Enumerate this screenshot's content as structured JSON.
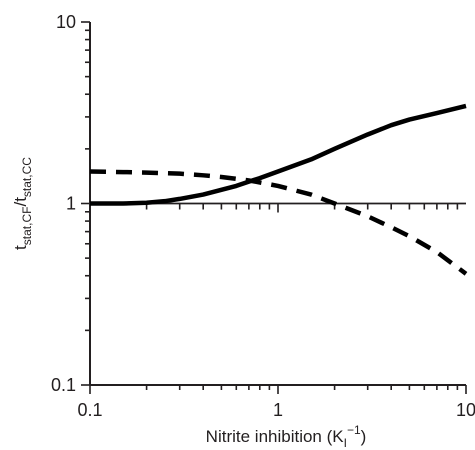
{
  "chart_data": {
    "type": "line",
    "title": "",
    "xlabel": {
      "base": "Nitrite inhibition (K",
      "sub": "I",
      "sup": "−1",
      "tail": ")"
    },
    "ylabel": {
      "parts": [
        {
          "t": "t"
        },
        {
          "t": "stat,CF",
          "sub": true
        },
        {
          "t": "/t"
        },
        {
          "t": "stat,CC",
          "sub": true
        }
      ]
    },
    "xscale": "log",
    "yscale": "log",
    "xlim": [
      0.1,
      10
    ],
    "ylim": [
      0.1,
      10
    ],
    "xticks": [
      {
        "v": 0.1,
        "label": "0.1"
      },
      {
        "v": 1,
        "label": "1"
      },
      {
        "v": 10,
        "label": "10"
      }
    ],
    "yticks": [
      {
        "v": 0.1,
        "label": "0.1"
      },
      {
        "v": 1,
        "label": "1"
      },
      {
        "v": 10,
        "label": "10"
      }
    ],
    "reference_line_y": 1,
    "grid": false,
    "legend": "none",
    "series": [
      {
        "style": "solid",
        "color": "#000000",
        "x": [
          0.1,
          0.15,
          0.2,
          0.25,
          0.3,
          0.4,
          0.5,
          0.6,
          0.7,
          0.8,
          1.0,
          1.5,
          2.0,
          3.0,
          4.0,
          5.0,
          7.0,
          10.0
        ],
        "y": [
          1.0,
          1.0,
          1.01,
          1.03,
          1.06,
          1.12,
          1.19,
          1.25,
          1.32,
          1.38,
          1.5,
          1.75,
          2.0,
          2.4,
          2.7,
          2.9,
          3.15,
          3.45
        ]
      },
      {
        "style": "dashed",
        "color": "#000000",
        "x": [
          0.1,
          0.15,
          0.2,
          0.3,
          0.4,
          0.5,
          0.7,
          1.0,
          1.5,
          2.0,
          3.0,
          4.0,
          5.0,
          7.0,
          10.0
        ],
        "y": [
          1.5,
          1.49,
          1.48,
          1.46,
          1.43,
          1.4,
          1.34,
          1.25,
          1.12,
          1.0,
          0.85,
          0.74,
          0.66,
          0.54,
          0.41
        ]
      }
    ]
  }
}
